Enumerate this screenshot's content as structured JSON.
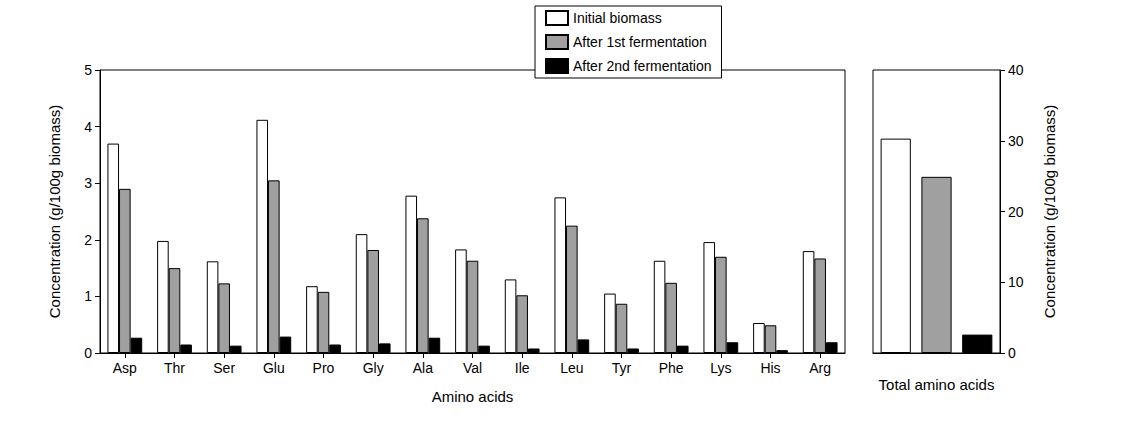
{
  "chart_data": [
    {
      "type": "bar",
      "categories": [
        "Asp",
        "Thr",
        "Ser",
        "Glu",
        "Pro",
        "Gly",
        "Ala",
        "Val",
        "Ile",
        "Leu",
        "Tyr",
        "Phe",
        "Lys",
        "His",
        "Arg"
      ],
      "series": [
        {
          "name": "Initial biomass",
          "color": "#ffffff",
          "values": [
            3.7,
            1.98,
            1.62,
            4.12,
            1.18,
            2.1,
            2.78,
            1.83,
            1.3,
            2.75,
            1.05,
            1.63,
            1.96,
            0.53,
            1.8
          ]
        },
        {
          "name": "After 1st fermentation",
          "color": "#a0a0a0",
          "values": [
            2.9,
            1.5,
            1.23,
            3.05,
            1.08,
            1.82,
            2.38,
            1.63,
            1.02,
            2.25,
            0.87,
            1.24,
            1.7,
            0.49,
            1.67
          ]
        },
        {
          "name": "After 2nd fermentation",
          "color": "#000000",
          "values": [
            0.27,
            0.15,
            0.13,
            0.29,
            0.15,
            0.17,
            0.27,
            0.13,
            0.08,
            0.24,
            0.08,
            0.13,
            0.19,
            0.05,
            0.19
          ]
        }
      ],
      "xlabel": "Amino acids",
      "ylabel": "Concentration (g/100g biomass)",
      "ylim": [
        0,
        5
      ],
      "yticks": [
        0,
        1,
        2,
        3,
        4,
        5
      ],
      "legend": "top"
    },
    {
      "type": "bar",
      "categories": [
        null
      ],
      "series": [
        {
          "name": "Initial biomass",
          "color": "#ffffff",
          "values": [
            30.3
          ]
        },
        {
          "name": "After 1st fermentation",
          "color": "#a0a0a0",
          "values": [
            24.9
          ]
        },
        {
          "name": "After 2nd fermentation",
          "color": "#000000",
          "values": [
            2.6
          ]
        }
      ],
      "xlabel": "Total amino acids",
      "ylabel": "Concentration (g/100g biomass)",
      "ylim": [
        0,
        40
      ],
      "yticks": [
        0,
        10,
        20,
        30,
        40
      ]
    }
  ]
}
